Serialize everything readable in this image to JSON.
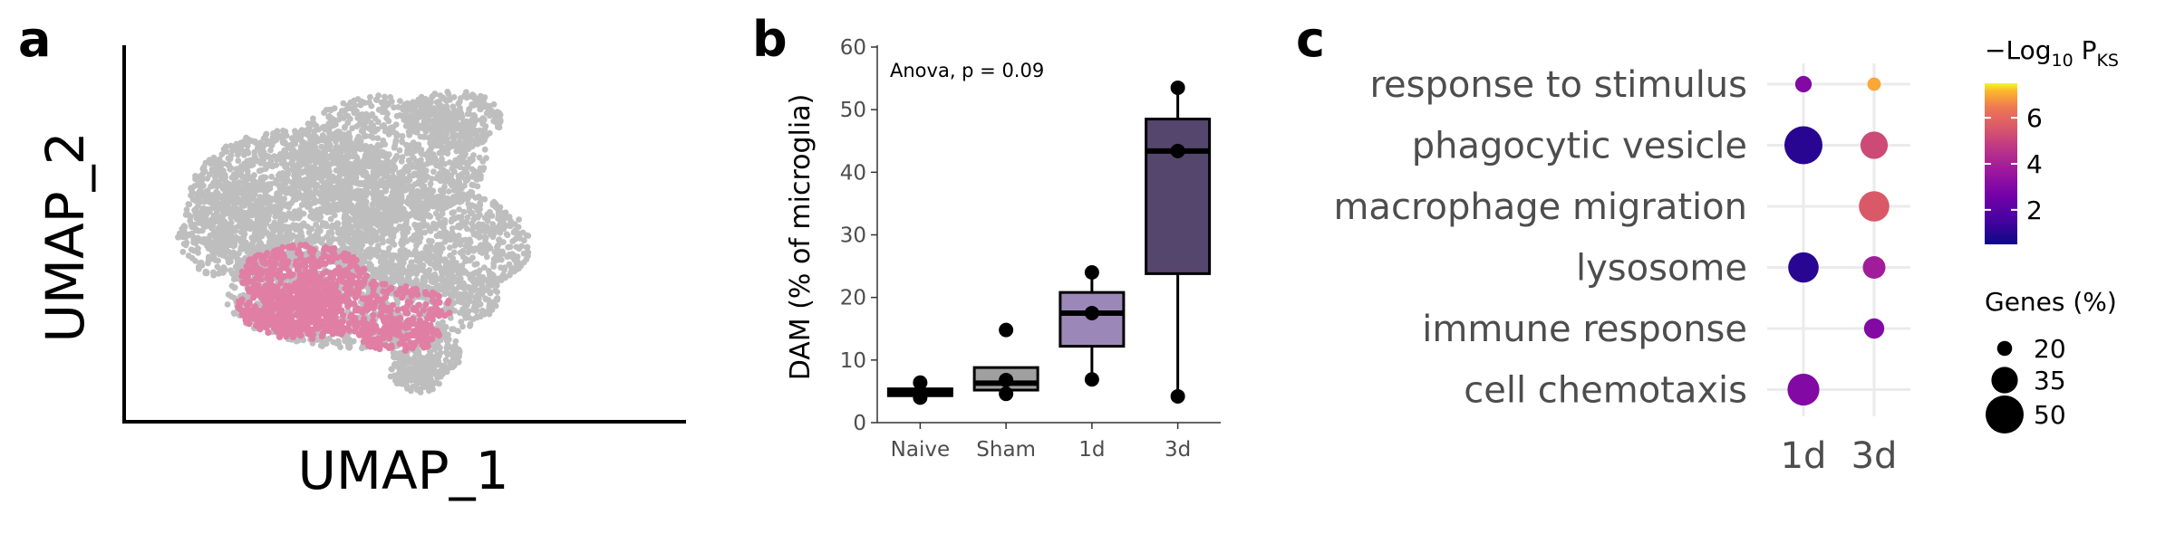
{
  "panels": {
    "a": "a",
    "b": "b",
    "c": "c"
  },
  "chart_data": [
    {
      "panel": "a",
      "type": "scatter",
      "xlabel": "UMAP_1",
      "ylabel": "UMAP_2",
      "colors": {
        "background_cells": "#bebebe",
        "highlight_cells": "#e07fa3"
      }
    },
    {
      "panel": "b",
      "type": "box",
      "categories": [
        "Naive",
        "Sham",
        "1d",
        "3d"
      ],
      "ylabel": "DAM (% of microglia)",
      "ylim": [
        0,
        60
      ],
      "yticks": [
        0,
        10,
        20,
        30,
        40,
        50,
        60
      ],
      "annotation": "Anova, p = 0.09",
      "boxes": [
        {
          "category": "Naive",
          "q1": 4.3,
          "median": 4.8,
          "q3": 5.4,
          "whisker_low": 4.3,
          "whisker_high": 5.4,
          "points": [
            4.0,
            4.8,
            6.4
          ],
          "fill": "#000000"
        },
        {
          "category": "Sham",
          "q1": 5.2,
          "median": 6.3,
          "q3": 8.8,
          "whisker_low": 4.6,
          "whisker_high": 8.8,
          "points": [
            4.6,
            6.8,
            14.8
          ],
          "fill": "#a0a0a0"
        },
        {
          "category": "1d",
          "q1": 12.2,
          "median": 17.5,
          "q3": 20.8,
          "whisker_low": 6.9,
          "whisker_high": 24.0,
          "points": [
            6.9,
            17.5,
            24.0
          ],
          "fill": "#9c88b8"
        },
        {
          "category": "3d",
          "q1": 23.8,
          "median": 43.4,
          "q3": 48.5,
          "whisker_low": 4.2,
          "whisker_high": 53.5,
          "points": [
            4.2,
            43.4,
            53.5
          ],
          "fill": "#55466e"
        }
      ]
    },
    {
      "panel": "c",
      "type": "dot",
      "terms": [
        "response to stimulus",
        "phagocytic vesicle",
        "macrophage migration",
        "lysosome",
        "immune response",
        "cell chemotaxis"
      ],
      "conditions": [
        "1d",
        "3d"
      ],
      "color_legend_title": "−Log",
      "color_legend_sub": "10",
      "color_legend_P": " P",
      "color_legend_sub2": "KS",
      "color_scale": {
        "min": 0.5,
        "max": 7.5,
        "ticks": [
          2,
          4,
          6
        ]
      },
      "size_legend_title": "Genes (%)",
      "size_ticks": [
        20,
        35,
        50
      ],
      "points": [
        {
          "term": "response to stimulus",
          "condition": "1d",
          "neglog10p": 3.0,
          "genes_pct": 22
        },
        {
          "term": "response to stimulus",
          "condition": "3d",
          "neglog10p": 7.0,
          "genes_pct": 18
        },
        {
          "term": "phagocytic vesicle",
          "condition": "1d",
          "neglog10p": 1.0,
          "genes_pct": 50
        },
        {
          "term": "phagocytic vesicle",
          "condition": "3d",
          "neglog10p": 5.2,
          "genes_pct": 36
        },
        {
          "term": "macrophage migration",
          "condition": "3d",
          "neglog10p": 5.6,
          "genes_pct": 40
        },
        {
          "term": "lysosome",
          "condition": "1d",
          "neglog10p": 1.0,
          "genes_pct": 40
        },
        {
          "term": "lysosome",
          "condition": "3d",
          "neglog10p": 3.8,
          "genes_pct": 30
        },
        {
          "term": "immune response",
          "condition": "3d",
          "neglog10p": 3.0,
          "genes_pct": 27
        },
        {
          "term": "cell chemotaxis",
          "condition": "1d",
          "neglog10p": 3.0,
          "genes_pct": 42
        }
      ]
    }
  ]
}
